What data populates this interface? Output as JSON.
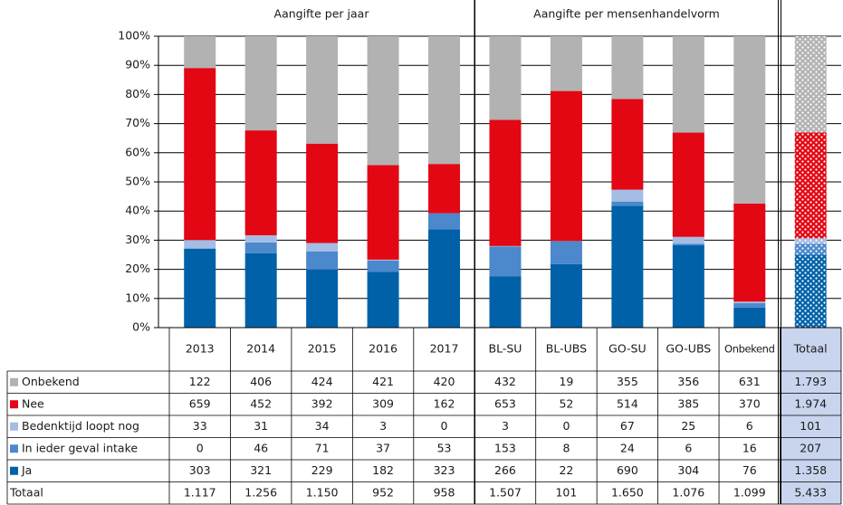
{
  "chart_data": {
    "type": "stacked_bar_100",
    "group_titles": [
      "Aangifte per jaar",
      "Aangifte per mensenhandelvorm"
    ],
    "categories": [
      "2013",
      "2014",
      "2015",
      "2016",
      "2017",
      "BL-SU",
      "BL-UBS",
      "GO-SU",
      "GO-UBS",
      "Onbekend",
      "Totaal"
    ],
    "ylim": [
      0,
      100
    ],
    "yticks": [
      {
        "value": 0,
        "label": "0%"
      },
      {
        "value": 10,
        "label": "10%"
      },
      {
        "value": 20,
        "label": "20%"
      },
      {
        "value": 30,
        "label": "30%"
      },
      {
        "value": 40,
        "label": "40%"
      },
      {
        "value": 50,
        "label": "50%"
      },
      {
        "value": 60,
        "label": "60%"
      },
      {
        "value": 70,
        "label": "70%"
      },
      {
        "value": 80,
        "label": "80%"
      },
      {
        "value": 90,
        "label": "90%"
      },
      {
        "value": 100,
        "label": "100%"
      }
    ],
    "grid": true,
    "series": [
      {
        "name": "Onbekend",
        "color": "#b2b2b2",
        "values": [
          122,
          406,
          424,
          421,
          420,
          432,
          19,
          355,
          356,
          631,
          1793
        ],
        "value_labels": [
          null,
          null,
          null,
          null,
          null,
          null,
          null,
          null,
          null,
          null,
          "1.793"
        ]
      },
      {
        "name": "Nee",
        "color": "#e30613",
        "values": [
          659,
          452,
          392,
          309,
          162,
          653,
          52,
          514,
          385,
          370,
          1974
        ],
        "value_labels": [
          null,
          null,
          null,
          null,
          null,
          null,
          null,
          null,
          null,
          null,
          "1.974"
        ]
      },
      {
        "name": "Bedenktijd loopt nog",
        "color": "#a5bde4",
        "values": [
          33,
          31,
          34,
          3,
          0,
          3,
          0,
          67,
          25,
          6,
          101
        ]
      },
      {
        "name": "In ieder geval intake",
        "color": "#4b88cc",
        "values": [
          0,
          46,
          71,
          37,
          53,
          153,
          8,
          24,
          6,
          16,
          207
        ]
      },
      {
        "name": "Ja",
        "color": "#0061a8",
        "values": [
          303,
          321,
          229,
          182,
          323,
          266,
          22,
          690,
          304,
          76,
          1358
        ],
        "value_labels": [
          null,
          null,
          null,
          null,
          null,
          null,
          null,
          null,
          null,
          null,
          "1.358"
        ]
      }
    ],
    "totals": {
      "name": "Totaal",
      "values": [
        1117,
        1256,
        1150,
        952,
        958,
        1507,
        101,
        1650,
        1076,
        1099,
        5433
      ],
      "value_labels": [
        "1.117",
        "1.256",
        "1.150",
        null,
        null,
        "1.507",
        null,
        "1.650",
        "1.076",
        "1.099",
        "5.433"
      ]
    }
  }
}
